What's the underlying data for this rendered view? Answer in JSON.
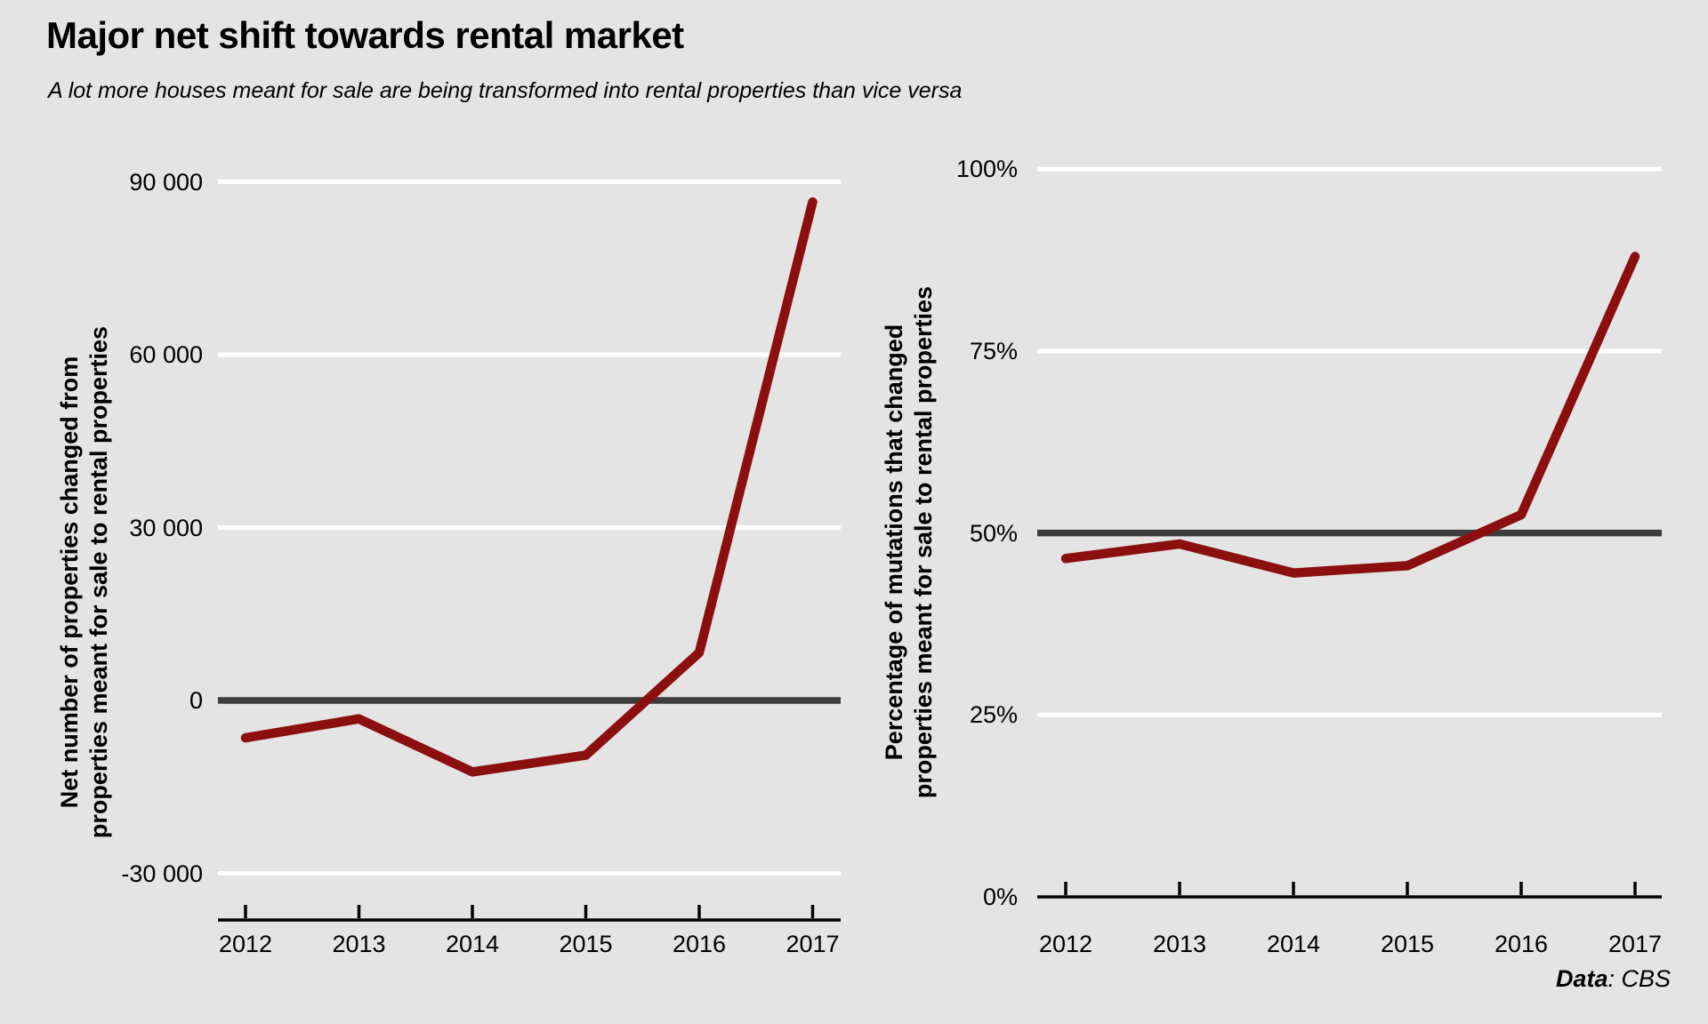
{
  "title": "Major net shift towards rental market",
  "subtitle": "A lot more houses meant for sale are being transformed into rental properties than vice versa",
  "footer": {
    "prefix": "Data",
    "suffix": ": CBS"
  },
  "colors": {
    "background": "#e4e4e4",
    "gridline": "#ffffff",
    "baseline": "#3d3d3d",
    "axis": "#000000",
    "series": "#8b0f0f",
    "text": "#000000"
  },
  "chart_data": [
    {
      "type": "line",
      "side": "left",
      "ylabel_lines": [
        "Net number of properties changed from",
        "properties meant for sale to rental properties"
      ],
      "categories": [
        "2012",
        "2013",
        "2014",
        "2015",
        "2016",
        "2017"
      ],
      "values": [
        -6500,
        -3200,
        -12400,
        -9500,
        8300,
        86500
      ],
      "ylim": [
        -38000,
        95000
      ],
      "grid": "horizontal",
      "legend": "none",
      "y_ticks": [
        {
          "label": "90 000",
          "value": 90000,
          "style": "grid"
        },
        {
          "label": "60 000",
          "value": 60000,
          "style": "grid"
        },
        {
          "label": "30 000",
          "value": 30000,
          "style": "grid"
        },
        {
          "label": "0",
          "value": 0,
          "style": "baseline"
        },
        {
          "label": "-30 000",
          "value": -30000,
          "style": "grid"
        }
      ]
    },
    {
      "type": "line",
      "side": "right",
      "ylabel_lines": [
        "Percentage of mutations that changed",
        "properties meant for sale to rental properties"
      ],
      "categories": [
        "2012",
        "2013",
        "2014",
        "2015",
        "2016",
        "2017"
      ],
      "values": [
        46.5,
        48.5,
        44.5,
        45.5,
        52.5,
        88
      ],
      "ylim": [
        0,
        100
      ],
      "grid": "horizontal",
      "legend": "none",
      "y_ticks": [
        {
          "label": "100%",
          "value": 100,
          "style": "grid"
        },
        {
          "label": "75%",
          "value": 75,
          "style": "grid"
        },
        {
          "label": "50%",
          "value": 50,
          "style": "baseline"
        },
        {
          "label": "25%",
          "value": 25,
          "style": "grid"
        },
        {
          "label": "0%",
          "value": 0,
          "style": "axis"
        }
      ]
    }
  ]
}
